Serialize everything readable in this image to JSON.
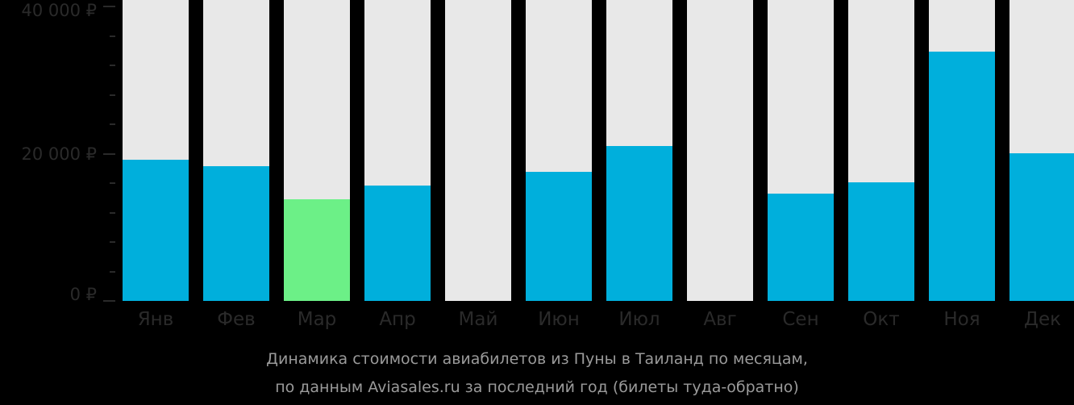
{
  "chart_data": {
    "type": "bar",
    "title": "Динамика стоимости авиабилетов из Пуны в Таиланд по месяцам,",
    "subtitle": "по данным Aviasales.ru за последний год (билеты туда-обратно)",
    "xlabel": "",
    "ylabel": "",
    "ylim": [
      0,
      40000
    ],
    "yticks": [
      {
        "value": 0,
        "label": "0 ₽"
      },
      {
        "value": 20000,
        "label": "20 000 ₽"
      },
      {
        "value": 40000,
        "label": "40 000 ₽"
      }
    ],
    "categories": [
      "Янв",
      "Фев",
      "Мар",
      "Апр",
      "Май",
      "Июн",
      "Июл",
      "Авг",
      "Сен",
      "Окт",
      "Ноя",
      "Дек"
    ],
    "values": [
      19200,
      18300,
      13800,
      15700,
      null,
      17500,
      21000,
      null,
      14600,
      16100,
      33900,
      20050
    ],
    "highlight_index": 2,
    "colors": {
      "bar": "#00afdc",
      "highlight": "#6cf087",
      "track": "#e8e8e8",
      "background": "#000000",
      "axis_text": "#2a2a2a",
      "caption": "#9a9a9a"
    },
    "grid": false,
    "legend": null
  },
  "axis": {
    "y_labels": [
      "40 000 ₽",
      "20 000 ₽",
      "0 ₽"
    ]
  },
  "caption": {
    "line1": "Динамика стоимости авиабилетов из Пуны в Таиланд по месяцам,",
    "line2": "по данным Aviasales.ru за последний год (билеты туда-обратно)"
  }
}
